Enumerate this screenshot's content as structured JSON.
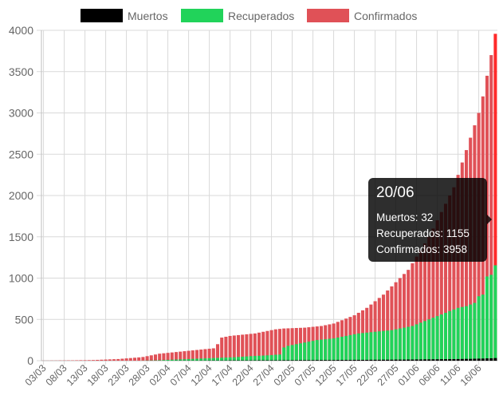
{
  "chart_data": {
    "type": "bar",
    "stacked": false,
    "legend_position": "top",
    "grid": true,
    "ylim": [
      0,
      4000
    ],
    "yticks": [
      0,
      500,
      1000,
      1500,
      2000,
      2500,
      3000,
      3500,
      4000
    ],
    "colors": {
      "Muertos": "#000000",
      "Recuperados": "#21d35a",
      "Confirmados": "#e05157",
      "highlight": "#ff2a2a"
    },
    "legend": [
      "Muertos",
      "Recuperados",
      "Confirmados"
    ],
    "categories": [
      "03/03",
      "04/03",
      "05/03",
      "06/03",
      "07/03",
      "08/03",
      "09/03",
      "10/03",
      "11/03",
      "12/03",
      "13/03",
      "14/03",
      "15/03",
      "16/03",
      "17/03",
      "18/03",
      "19/03",
      "20/03",
      "21/03",
      "22/03",
      "23/03",
      "24/03",
      "25/03",
      "26/03",
      "27/03",
      "28/03",
      "29/03",
      "30/03",
      "31/03",
      "01/04",
      "02/04",
      "03/04",
      "04/04",
      "05/04",
      "06/04",
      "07/04",
      "08/04",
      "09/04",
      "10/04",
      "11/04",
      "12/04",
      "13/04",
      "14/04",
      "15/04",
      "16/04",
      "17/04",
      "18/04",
      "19/04",
      "20/04",
      "21/04",
      "22/04",
      "23/04",
      "24/04",
      "25/04",
      "26/04",
      "27/04",
      "28/04",
      "29/04",
      "30/04",
      "01/05",
      "02/05",
      "03/05",
      "04/05",
      "05/05",
      "06/05",
      "07/05",
      "08/05",
      "09/05",
      "10/05",
      "11/05",
      "12/05",
      "13/05",
      "14/05",
      "15/05",
      "16/05",
      "17/05",
      "18/05",
      "19/05",
      "20/05",
      "21/05",
      "22/05",
      "23/05",
      "24/05",
      "25/05",
      "26/05",
      "27/05",
      "28/05",
      "29/05",
      "30/05",
      "31/05",
      "01/06",
      "02/06",
      "03/06",
      "04/06",
      "05/06",
      "06/06",
      "07/06",
      "08/06",
      "09/06",
      "10/06",
      "11/06",
      "12/06",
      "13/06",
      "14/06",
      "15/06",
      "16/06",
      "17/06",
      "18/06",
      "19/06",
      "20/06"
    ],
    "xtick_labels": [
      "03/03",
      "08/03",
      "13/03",
      "18/03",
      "23/03",
      "28/03",
      "02/04",
      "07/04",
      "12/04",
      "17/04",
      "22/04",
      "27/04",
      "02/05",
      "07/05",
      "12/05",
      "17/05",
      "22/05",
      "27/05",
      "01/06",
      "06/06",
      "11/06",
      "16/06"
    ],
    "series": [
      {
        "name": "Muertos",
        "values": [
          0,
          0,
          0,
          0,
          0,
          0,
          0,
          0,
          0,
          0,
          0,
          0,
          0,
          0,
          0,
          0,
          0,
          0,
          0,
          0,
          0,
          0,
          0,
          0,
          0,
          1,
          1,
          1,
          1,
          1,
          1,
          1,
          2,
          2,
          2,
          2,
          2,
          2,
          2,
          2,
          3,
          3,
          3,
          3,
          3,
          4,
          4,
          4,
          4,
          4,
          4,
          4,
          5,
          5,
          5,
          5,
          5,
          5,
          6,
          6,
          6,
          6,
          7,
          7,
          7,
          7,
          8,
          8,
          8,
          8,
          8,
          9,
          9,
          9,
          9,
          10,
          10,
          10,
          10,
          11,
          11,
          11,
          12,
          12,
          12,
          13,
          13,
          13,
          14,
          14,
          15,
          15,
          16,
          16,
          17,
          17,
          18,
          18,
          19,
          19,
          20,
          21,
          22,
          22,
          24,
          25,
          26,
          28,
          29,
          32
        ]
      },
      {
        "name": "Recuperados",
        "values": [
          0,
          0,
          0,
          0,
          0,
          0,
          0,
          0,
          0,
          0,
          0,
          0,
          0,
          0,
          0,
          0,
          0,
          0,
          0,
          0,
          0,
          0,
          0,
          0,
          1,
          2,
          3,
          4,
          6,
          8,
          10,
          12,
          14,
          16,
          18,
          20,
          22,
          24,
          26,
          28,
          30,
          32,
          34,
          36,
          38,
          40,
          42,
          45,
          48,
          52,
          55,
          58,
          60,
          62,
          65,
          68,
          72,
          75,
          160,
          180,
          190,
          200,
          210,
          220,
          230,
          240,
          250,
          255,
          260,
          265,
          270,
          280,
          290,
          300,
          310,
          320,
          330,
          335,
          340,
          345,
          350,
          355,
          360,
          365,
          370,
          380,
          390,
          400,
          410,
          420,
          440,
          460,
          480,
          500,
          520,
          540,
          560,
          580,
          600,
          620,
          640,
          650,
          660,
          680,
          700,
          780,
          800,
          1020,
          1040,
          1155
        ]
      },
      {
        "name": "Confirmados",
        "values": [
          1,
          1,
          2,
          2,
          3,
          3,
          4,
          4,
          5,
          6,
          6,
          7,
          8,
          10,
          12,
          14,
          16,
          18,
          20,
          24,
          28,
          32,
          36,
          40,
          45,
          55,
          65,
          75,
          85,
          90,
          95,
          100,
          105,
          110,
          115,
          120,
          125,
          130,
          135,
          140,
          145,
          150,
          200,
          280,
          290,
          300,
          305,
          310,
          315,
          320,
          325,
          330,
          340,
          350,
          360,
          370,
          380,
          385,
          390,
          392,
          394,
          396,
          398,
          400,
          405,
          410,
          415,
          420,
          430,
          440,
          450,
          470,
          490,
          510,
          530,
          550,
          580,
          610,
          640,
          680,
          720,
          760,
          800,
          850,
          900,
          950,
          1000,
          1050,
          1100,
          1180,
          1260,
          1340,
          1420,
          1500,
          1600,
          1700,
          1800,
          1900,
          2000,
          2100,
          2250,
          2400,
          2550,
          2700,
          2850,
          3000,
          3200,
          3450,
          3700,
          3958
        ]
      }
    ],
    "tooltip": {
      "title": "20/06",
      "lines": [
        "Muertos: 32",
        "Recuperados: 1155",
        "Confirmados: 3958"
      ]
    }
  }
}
